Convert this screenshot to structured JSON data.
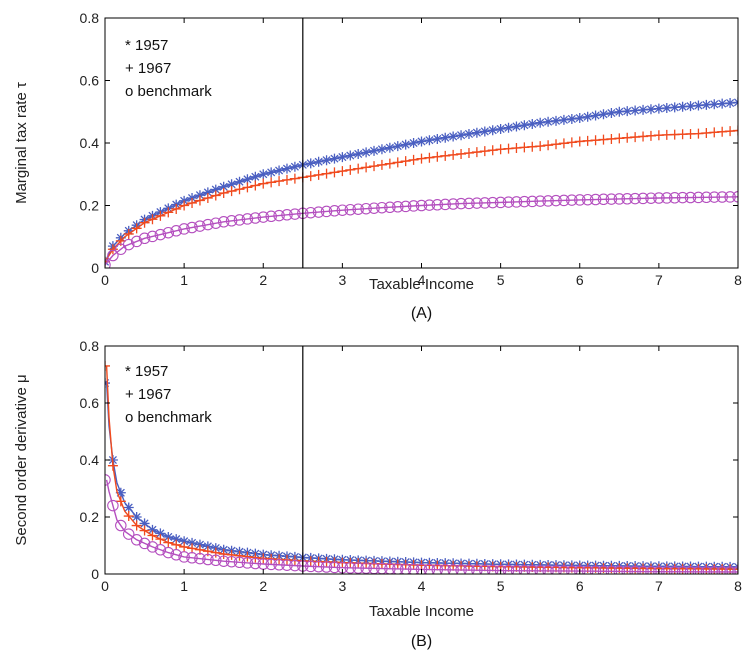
{
  "chart_data": [
    {
      "type": "line",
      "panel_label": "(A)",
      "xlabel": "Taxable Income",
      "ylabel": "Marginal tax rate τ",
      "xlim": [
        0,
        8
      ],
      "ylim": [
        0,
        0.8
      ],
      "xticks": [
        "0",
        "1",
        "2",
        "3",
        "4",
        "5",
        "6",
        "7",
        "8"
      ],
      "yticks": [
        "0",
        "0.2",
        "0.4",
        "0.6",
        "0.8"
      ],
      "vline_x": 2.5,
      "legend": [
        "* 1957",
        "+ 1967",
        "o benchmark"
      ],
      "legend_position": "top-left",
      "grid": false,
      "series": [
        {
          "name": "1957",
          "marker": "*",
          "color": "#4a5fc1",
          "points": [
            [
              0,
              0.02
            ],
            [
              0.1,
              0.07
            ],
            [
              0.25,
              0.11
            ],
            [
              0.5,
              0.155
            ],
            [
              1,
              0.215
            ],
            [
              1.5,
              0.26
            ],
            [
              2,
              0.3
            ],
            [
              2.5,
              0.33
            ],
            [
              3,
              0.355
            ],
            [
              3.5,
              0.38
            ],
            [
              4,
              0.405
            ],
            [
              4.5,
              0.425
            ],
            [
              5,
              0.445
            ],
            [
              5.5,
              0.465
            ],
            [
              6,
              0.48
            ],
            [
              6.5,
              0.5
            ],
            [
              7,
              0.51
            ],
            [
              7.5,
              0.52
            ],
            [
              8,
              0.53
            ]
          ]
        },
        {
          "name": "1967",
          "marker": "+",
          "color": "#f04a1e",
          "points": [
            [
              0,
              0.02
            ],
            [
              0.1,
              0.06
            ],
            [
              0.25,
              0.1
            ],
            [
              0.5,
              0.145
            ],
            [
              1,
              0.2
            ],
            [
              1.5,
              0.24
            ],
            [
              2,
              0.27
            ],
            [
              2.5,
              0.29
            ],
            [
              3,
              0.31
            ],
            [
              3.5,
              0.33
            ],
            [
              4,
              0.35
            ],
            [
              4.5,
              0.365
            ],
            [
              5,
              0.38
            ],
            [
              5.5,
              0.39
            ],
            [
              6,
              0.405
            ],
            [
              6.5,
              0.415
            ],
            [
              7,
              0.425
            ],
            [
              7.5,
              0.43
            ],
            [
              8,
              0.44
            ]
          ]
        },
        {
          "name": "benchmark",
          "marker": "o",
          "color": "#b44fbf",
          "points": [
            [
              0,
              0.01
            ],
            [
              0.1,
              0.04
            ],
            [
              0.25,
              0.07
            ],
            [
              0.5,
              0.095
            ],
            [
              1,
              0.125
            ],
            [
              1.5,
              0.148
            ],
            [
              2,
              0.163
            ],
            [
              2.5,
              0.175
            ],
            [
              3,
              0.185
            ],
            [
              3.5,
              0.193
            ],
            [
              4,
              0.2
            ],
            [
              4.5,
              0.206
            ],
            [
              5,
              0.21
            ],
            [
              5.5,
              0.214
            ],
            [
              6,
              0.218
            ],
            [
              6.5,
              0.221
            ],
            [
              7,
              0.224
            ],
            [
              7.5,
              0.226
            ],
            [
              8,
              0.228
            ]
          ]
        }
      ]
    },
    {
      "type": "line",
      "panel_label": "(B)",
      "xlabel": "Taxable Income",
      "ylabel": "Second order derivative μ",
      "xlim": [
        0,
        8
      ],
      "ylim": [
        0,
        0.8
      ],
      "xticks": [
        "0",
        "1",
        "2",
        "3",
        "4",
        "5",
        "6",
        "7",
        "8"
      ],
      "yticks": [
        "0",
        "0.2",
        "0.4",
        "0.6",
        "0.8"
      ],
      "vline_x": 2.5,
      "legend": [
        "* 1957",
        "+ 1967",
        "o  benchmark"
      ],
      "legend_position": "top-left",
      "grid": false,
      "series": [
        {
          "name": "1957",
          "marker": "*",
          "color": "#4a5fc1",
          "points": [
            [
              0.02,
              0.67
            ],
            [
              0.05,
              0.52
            ],
            [
              0.1,
              0.4
            ],
            [
              0.15,
              0.32
            ],
            [
              0.25,
              0.25
            ],
            [
              0.4,
              0.2
            ],
            [
              0.6,
              0.155
            ],
            [
              0.8,
              0.13
            ],
            [
              1,
              0.115
            ],
            [
              1.5,
              0.085
            ],
            [
              2,
              0.068
            ],
            [
              2.5,
              0.058
            ],
            [
              3,
              0.05
            ],
            [
              3.5,
              0.045
            ],
            [
              4,
              0.04
            ],
            [
              5,
              0.034
            ],
            [
              6,
              0.03
            ],
            [
              7,
              0.027
            ],
            [
              8,
              0.025
            ]
          ]
        },
        {
          "name": "1967",
          "marker": "+",
          "color": "#f04a1e",
          "points": [
            [
              0.02,
              0.73
            ],
            [
              0.05,
              0.55
            ],
            [
              0.1,
              0.38
            ],
            [
              0.15,
              0.29
            ],
            [
              0.25,
              0.22
            ],
            [
              0.4,
              0.17
            ],
            [
              0.6,
              0.135
            ],
            [
              0.8,
              0.11
            ],
            [
              1,
              0.095
            ],
            [
              1.5,
              0.07
            ],
            [
              2,
              0.055
            ],
            [
              2.5,
              0.046
            ],
            [
              3,
              0.04
            ],
            [
              3.5,
              0.035
            ],
            [
              4,
              0.031
            ],
            [
              5,
              0.026
            ],
            [
              6,
              0.022
            ],
            [
              7,
              0.019
            ],
            [
              8,
              0.017
            ]
          ]
        },
        {
          "name": "benchmark",
          "marker": "o",
          "color": "#b44fbf",
          "points": [
            [
              0.02,
              0.33
            ],
            [
              0.05,
              0.29
            ],
            [
              0.1,
              0.24
            ],
            [
              0.15,
              0.19
            ],
            [
              0.25,
              0.15
            ],
            [
              0.4,
              0.12
            ],
            [
              0.6,
              0.095
            ],
            [
              0.8,
              0.075
            ],
            [
              1,
              0.06
            ],
            [
              1.5,
              0.045
            ],
            [
              2,
              0.035
            ],
            [
              2.5,
              0.028
            ],
            [
              3,
              0.022
            ],
            [
              3.5,
              0.019
            ],
            [
              4,
              0.016
            ],
            [
              5,
              0.012
            ],
            [
              6,
              0.01
            ],
            [
              7,
              0.008
            ],
            [
              8,
              0.007
            ]
          ]
        }
      ]
    }
  ]
}
